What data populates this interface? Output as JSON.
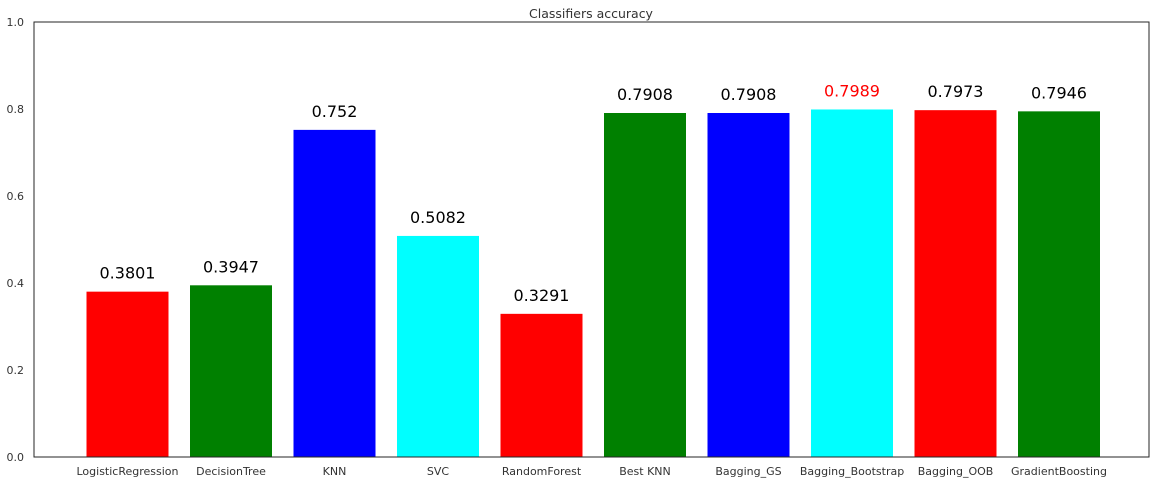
{
  "chart_data": {
    "type": "bar",
    "title": "Classifiers accuracy",
    "xlabel": "",
    "ylabel": "",
    "ylim": [
      0,
      1.0
    ],
    "yticks": [
      "0.0",
      "0.2",
      "0.4",
      "0.6",
      "0.8",
      "1.0"
    ],
    "categories": [
      "LogisticRegression",
      "DecisionTree",
      "KNN",
      "SVC",
      "RandomForest",
      "Best KNN",
      "Bagging_GS",
      "Bagging_Bootstrap",
      "Bagging_OOB",
      "GradientBoosting"
    ],
    "values": [
      0.3801,
      0.3947,
      0.752,
      0.5082,
      0.3291,
      0.7908,
      0.7908,
      0.7989,
      0.7973,
      0.7946
    ],
    "value_labels": [
      "0.3801",
      "0.3947",
      "0.752",
      "0.5082",
      "0.3291",
      "0.7908",
      "0.7908",
      "0.7989",
      "0.7973",
      "0.7946"
    ],
    "bar_colors": [
      "#ff0000",
      "#008000",
      "#0000ff",
      "#00ffff",
      "#ff0000",
      "#008000",
      "#0000ff",
      "#00ffff",
      "#ff0000",
      "#008000"
    ],
    "label_colors": [
      "#000000",
      "#000000",
      "#000000",
      "#000000",
      "#000000",
      "#000000",
      "#000000",
      "#ff0000",
      "#000000",
      "#000000"
    ],
    "grid": false,
    "legend": "none"
  }
}
